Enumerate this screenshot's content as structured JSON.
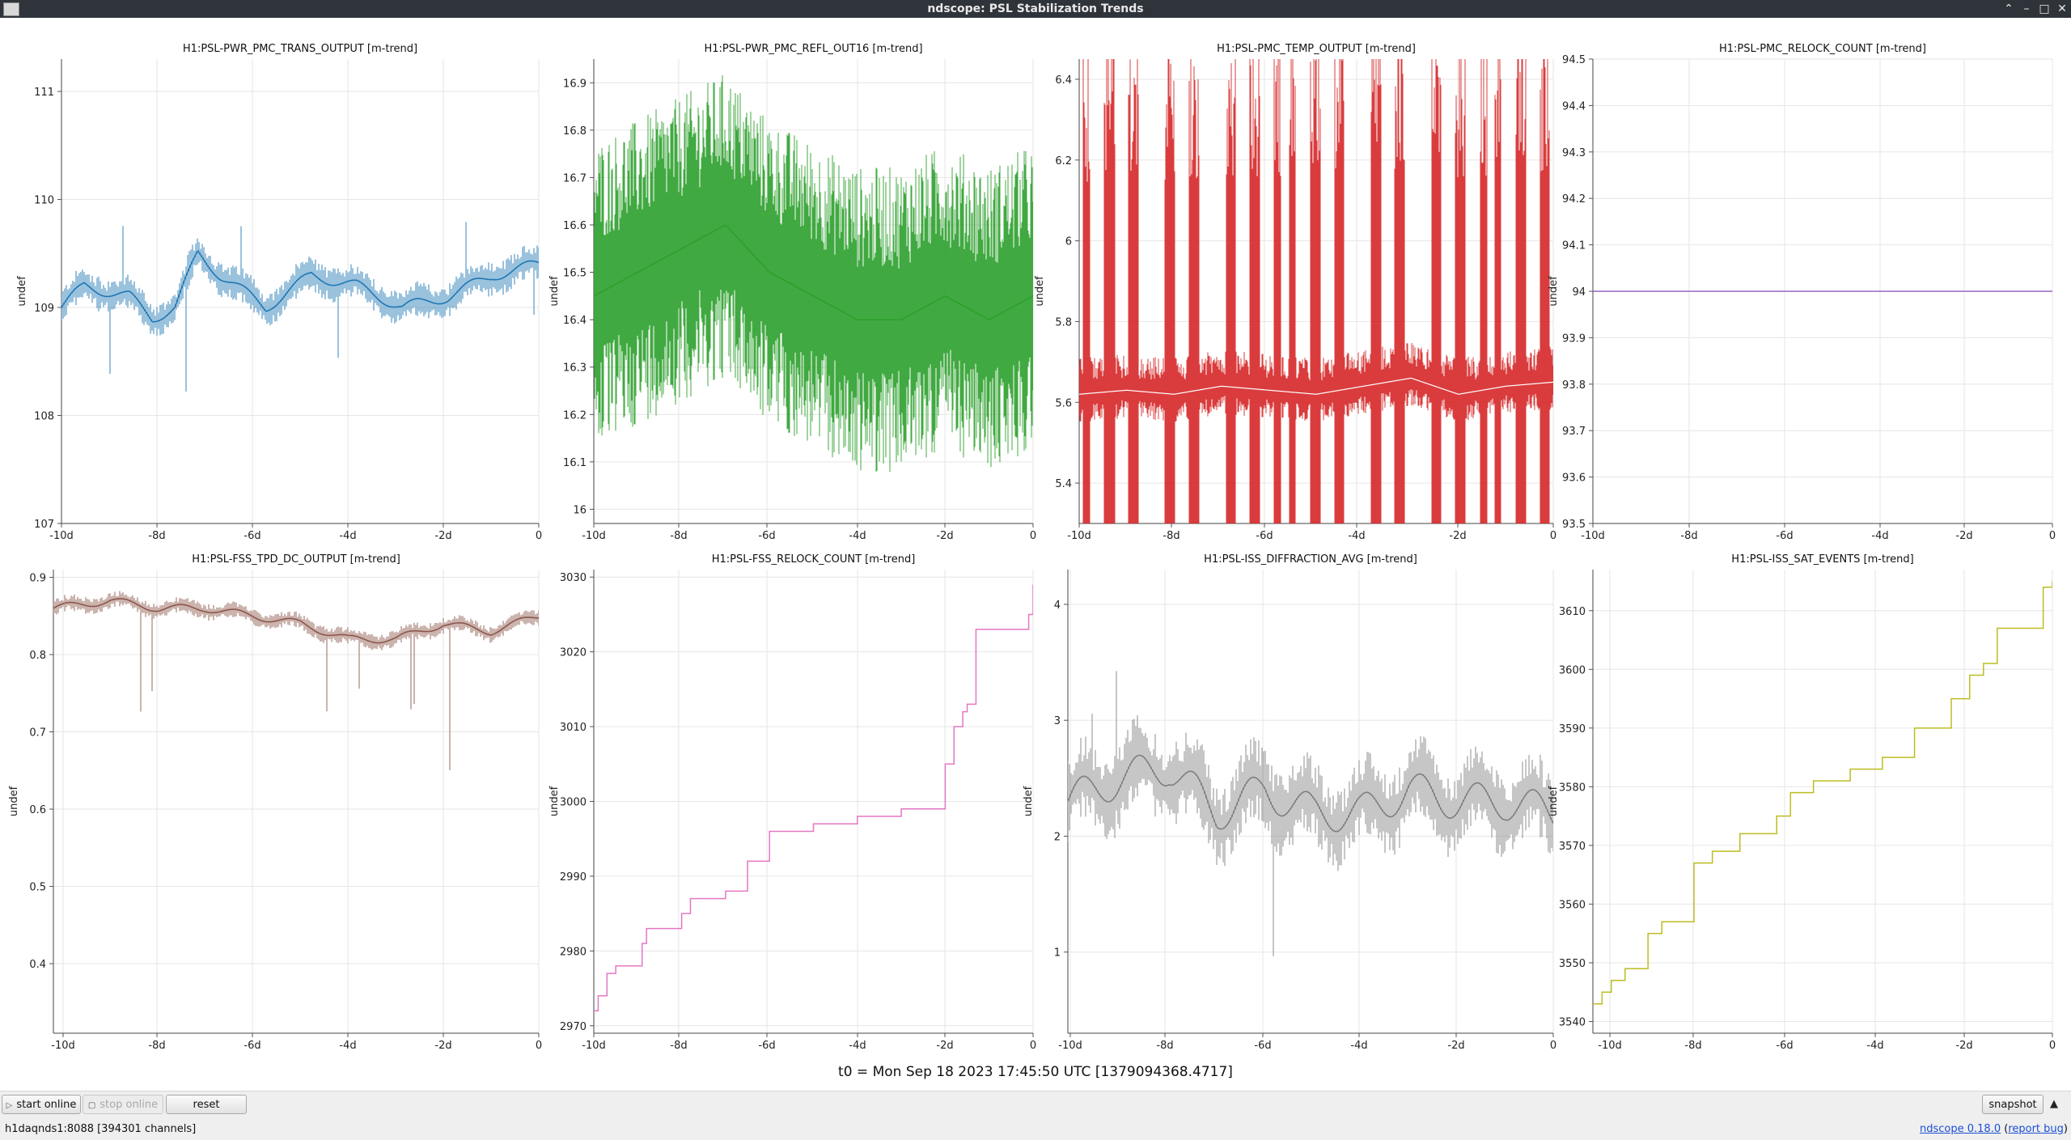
{
  "window": {
    "title": "ndscope: PSL Stabilization Trends"
  },
  "xaxis": {
    "ticks": [
      "-10d",
      "-8d",
      "-6d",
      "-4d",
      "-2d",
      "0"
    ]
  },
  "plots": [
    {
      "title": "H1:PSL-PWR_PMC_TRANS_OUTPUT [m-trend]",
      "ylabel": "undef",
      "color": "#1f77b4",
      "style": "noise",
      "yticks": [
        "107",
        "108",
        "109",
        "110",
        "111"
      ]
    },
    {
      "title": "H1:PSL-PWR_PMC_REFL_OUT16 [m-trend]",
      "ylabel": "undef",
      "color": "#2ca02c",
      "style": "dense",
      "yticks": [
        "16",
        "16.1",
        "16.2",
        "16.3",
        "16.4",
        "16.5",
        "16.6",
        "16.7",
        "16.8",
        "16.9"
      ]
    },
    {
      "title": "H1:PSL-PMC_TEMP_OUTPUT [m-trend]",
      "ylabel": "undef",
      "color": "#d62728",
      "style": "bursts",
      "yticks": [
        "5.4",
        "5.6",
        "5.8",
        "6",
        "6.2",
        "6.4"
      ]
    },
    {
      "title": "H1:PSL-PMC_RELOCK_COUNT [m-trend]",
      "ylabel": "undef",
      "color": "#9467bd",
      "style": "flat",
      "yticks": [
        "93.5",
        "93.6",
        "93.7",
        "93.8",
        "93.9",
        "94",
        "94.1",
        "94.2",
        "94.3",
        "94.4",
        "94.5"
      ]
    },
    {
      "title": "H1:PSL-FSS_TPD_DC_OUTPUT [m-trend]",
      "ylabel": "undef",
      "color": "#8c564b",
      "style": "dips",
      "yticks": [
        "0.4",
        "0.5",
        "0.6",
        "0.7",
        "0.8",
        "0.9"
      ]
    },
    {
      "title": "H1:PSL-FSS_RELOCK_COUNT [m-trend]",
      "ylabel": "undef",
      "color": "#e377c2",
      "style": "step",
      "yticks": [
        "2970",
        "2980",
        "2990",
        "3000",
        "3010",
        "3020",
        "3030"
      ]
    },
    {
      "title": "H1:PSL-ISS_DIFFRACTION_AVG [m-trend]",
      "ylabel": "undef",
      "color": "#7f7f7f",
      "style": "gray",
      "yticks": [
        "1",
        "2",
        "3",
        "4"
      ]
    },
    {
      "title": "H1:PSL-ISS_SAT_EVENTS [m-trend]",
      "ylabel": "undef",
      "color": "#bcbd22",
      "style": "step",
      "yticks": [
        "3540",
        "3550",
        "3560",
        "3570",
        "3580",
        "3590",
        "3600",
        "3610"
      ]
    }
  ],
  "chart_data": [
    {
      "type": "line",
      "title": "H1:PSL-PWR_PMC_TRANS_OUTPUT [m-trend]",
      "ylabel": "undef",
      "xlim": [
        -10.5,
        0
      ],
      "ylim": [
        107,
        111.3
      ],
      "x": [
        -10.5,
        -10,
        -9,
        -8.5,
        -8,
        -7.5,
        -7,
        -6,
        -5,
        -4,
        -3,
        -2,
        -1,
        0
      ],
      "series": [
        {
          "values": [
            109,
            109.2,
            109.1,
            108.9,
            109.0,
            109.5,
            109.3,
            109.0,
            109.3,
            109.2,
            109.0,
            109.1,
            109.3,
            109.4
          ]
        }
      ]
    },
    {
      "type": "line",
      "title": "H1:PSL-PWR_PMC_REFL_OUT16 [m-trend]",
      "ylabel": "undef",
      "xlim": [
        -10,
        0
      ],
      "ylim": [
        15.97,
        16.95
      ],
      "x": [
        -10,
        -9,
        -8,
        -7,
        -6,
        -5,
        -4,
        -3,
        -2,
        -1,
        0
      ],
      "series": [
        {
          "values": [
            16.45,
            16.5,
            16.55,
            16.6,
            16.5,
            16.45,
            16.4,
            16.4,
            16.45,
            16.4,
            16.45
          ]
        }
      ]
    },
    {
      "type": "line",
      "title": "H1:PSL-PMC_TEMP_OUTPUT [m-trend]",
      "ylabel": "undef",
      "xlim": [
        -10,
        0
      ],
      "ylim": [
        5.3,
        6.45
      ],
      "x": [
        -10,
        -9,
        -8,
        -7,
        -6,
        -5,
        -4,
        -3,
        -2,
        -1,
        0
      ],
      "series": [
        {
          "values": [
            5.62,
            5.63,
            5.62,
            5.64,
            5.63,
            5.62,
            5.64,
            5.66,
            5.62,
            5.64,
            5.65
          ]
        }
      ]
    },
    {
      "type": "line",
      "title": "H1:PSL-PMC_RELOCK_COUNT [m-trend]",
      "ylabel": "undef",
      "xlim": [
        -10,
        0
      ],
      "ylim": [
        93.5,
        94.5
      ],
      "x": [
        -10,
        0
      ],
      "series": [
        {
          "values": [
            94,
            94
          ]
        }
      ]
    },
    {
      "type": "line",
      "title": "H1:PSL-FSS_TPD_DC_OUTPUT [m-trend]",
      "ylabel": "undef",
      "xlim": [
        -10.2,
        0
      ],
      "ylim": [
        0.31,
        0.91
      ],
      "x": [
        -10.2,
        -9,
        -8,
        -7,
        -6,
        -5,
        -4,
        -3,
        -2,
        -1,
        0
      ],
      "series": [
        {
          "values": [
            0.86,
            0.87,
            0.86,
            0.86,
            0.85,
            0.84,
            0.82,
            0.82,
            0.84,
            0.83,
            0.85
          ]
        }
      ]
    },
    {
      "type": "line",
      "title": "H1:PSL-FSS_RELOCK_COUNT [m-trend]",
      "ylabel": "undef",
      "xlim": [
        -10,
        0
      ],
      "ylim": [
        2969,
        3031
      ],
      "x": [
        -10,
        -9.9,
        -9.7,
        -9.5,
        -8.9,
        -8.8,
        -8,
        -7.8,
        -7,
        -6.5,
        -6,
        -5,
        -4,
        -3,
        -2,
        -1.8,
        -1.6,
        -1.5,
        -1.3,
        -0.1,
        0
      ],
      "series": [
        {
          "values": [
            2972,
            2974,
            2977,
            2978,
            2981,
            2983,
            2985,
            2987,
            2988,
            2992,
            2996,
            2997,
            2998,
            2999,
            3005,
            3010,
            3012,
            3013,
            3023,
            3025,
            3029
          ]
        }
      ]
    },
    {
      "type": "line",
      "title": "H1:PSL-ISS_DIFFRACTION_AVG [m-trend]",
      "ylabel": "undef",
      "xlim": [
        -10.1,
        0
      ],
      "ylim": [
        0.3,
        4.3
      ],
      "x": [
        -10.1,
        -9,
        -8,
        -7,
        -6,
        -5,
        -4,
        -3,
        -2,
        -1,
        0
      ],
      "series": [
        {
          "values": [
            2.3,
            2.5,
            2.6,
            2.2,
            2.4,
            2.2,
            2.2,
            2.4,
            2.3,
            2.3,
            2.2
          ]
        }
      ]
    },
    {
      "type": "line",
      "title": "H1:PSL-ISS_SAT_EVENTS [m-trend]",
      "ylabel": "undef",
      "xlim": [
        -10,
        0
      ],
      "ylim": [
        3538,
        3617
      ],
      "x": [
        -10,
        -9.8,
        -9.6,
        -9.3,
        -8.8,
        -8.5,
        -7.8,
        -7.4,
        -6.8,
        -6,
        -5.7,
        -5.2,
        -4.4,
        -3.7,
        -3,
        -2.2,
        -1.8,
        -1.5,
        -1.2,
        -0.8,
        -0.2,
        0
      ],
      "series": [
        {
          "values": [
            3543,
            3545,
            3547,
            3549,
            3555,
            3557,
            3567,
            3569,
            3572,
            3575,
            3579,
            3581,
            3583,
            3585,
            3590,
            3595,
            3599,
            3601,
            3607,
            3607,
            3614,
            3615
          ]
        }
      ]
    }
  ],
  "t0": "t0 = Mon Sep 18 2023 17:45:50 UTC [1379094368.4717]",
  "toolbar": {
    "start": "start online",
    "stop": "stop online",
    "reset": "reset",
    "snapshot": "snapshot"
  },
  "status": {
    "server": "h1daqnds1:8088  [394301 channels]",
    "version": "ndscope 0.18.0",
    "report": "report bug"
  }
}
